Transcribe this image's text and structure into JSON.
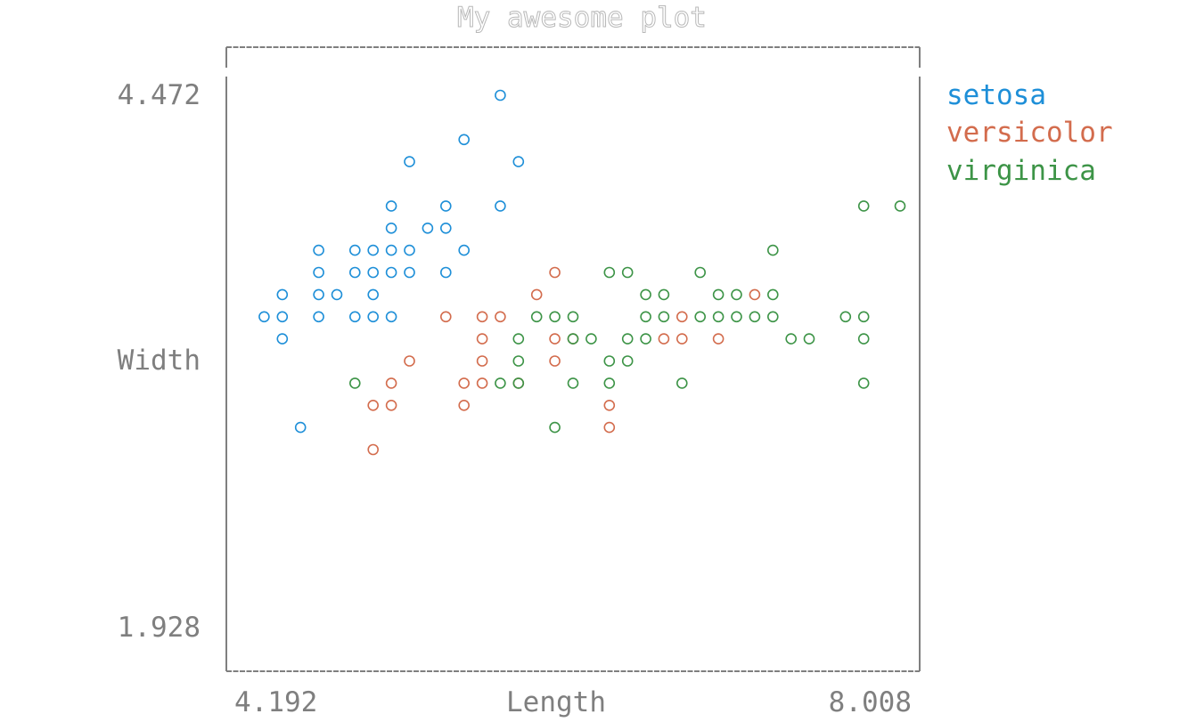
{
  "chart_data": {
    "type": "scatter",
    "title": "My awesome plot",
    "xlabel": "Length",
    "ylabel": "Width",
    "xlim": [
      4.192,
      8.008
    ],
    "ylim": [
      1.928,
      4.472
    ],
    "x_tick_labels": [
      "4.192",
      "8.008"
    ],
    "y_tick_labels": [
      "4.472",
      "1.928"
    ],
    "legend_position": "top-right",
    "grid": false,
    "series": [
      {
        "name": "setosa",
        "color": "#1e8fd8",
        "points": [
          [
            5.7,
            4.4
          ],
          [
            5.5,
            4.2
          ],
          [
            5.2,
            4.1
          ],
          [
            5.8,
            4.1
          ],
          [
            5.1,
            3.9
          ],
          [
            5.4,
            3.9
          ],
          [
            5.7,
            3.9
          ],
          [
            5.1,
            3.8
          ],
          [
            5.3,
            3.8
          ],
          [
            5.4,
            3.8
          ],
          [
            4.7,
            3.7
          ],
          [
            4.9,
            3.7
          ],
          [
            5.0,
            3.7
          ],
          [
            5.1,
            3.7
          ],
          [
            5.2,
            3.7
          ],
          [
            5.5,
            3.7
          ],
          [
            4.7,
            3.6
          ],
          [
            4.9,
            3.6
          ],
          [
            5.0,
            3.6
          ],
          [
            5.1,
            3.6
          ],
          [
            5.2,
            3.6
          ],
          [
            5.4,
            3.6
          ],
          [
            4.5,
            3.5
          ],
          [
            4.7,
            3.5
          ],
          [
            4.8,
            3.5
          ],
          [
            5.0,
            3.5
          ],
          [
            4.4,
            3.4
          ],
          [
            4.5,
            3.4
          ],
          [
            4.7,
            3.4
          ],
          [
            4.9,
            3.4
          ],
          [
            5.0,
            3.4
          ],
          [
            5.1,
            3.4
          ],
          [
            4.5,
            3.3
          ],
          [
            4.6,
            2.9
          ]
        ]
      },
      {
        "name": "versicolor",
        "color": "#d36c4d",
        "points": [
          [
            6.0,
            3.6
          ],
          [
            5.9,
            3.5
          ],
          [
            7.1,
            3.5
          ],
          [
            5.4,
            3.4
          ],
          [
            5.6,
            3.4
          ],
          [
            5.7,
            3.4
          ],
          [
            6.7,
            3.4
          ],
          [
            5.6,
            3.3
          ],
          [
            6.0,
            3.3
          ],
          [
            6.1,
            3.3
          ],
          [
            6.6,
            3.3
          ],
          [
            6.7,
            3.3
          ],
          [
            6.9,
            3.3
          ],
          [
            5.2,
            3.2
          ],
          [
            5.6,
            3.2
          ],
          [
            6.0,
            3.2
          ],
          [
            5.1,
            3.1
          ],
          [
            5.5,
            3.1
          ],
          [
            5.6,
            3.1
          ],
          [
            5.8,
            3.1
          ],
          [
            5.0,
            3.0
          ],
          [
            5.1,
            3.0
          ],
          [
            5.5,
            3.0
          ],
          [
            6.3,
            3.0
          ],
          [
            6.3,
            2.9
          ],
          [
            5.0,
            2.8
          ]
        ]
      },
      {
        "name": "virginica",
        "color": "#3d9447",
        "points": [
          [
            7.7,
            3.9
          ],
          [
            7.9,
            3.9
          ],
          [
            7.2,
            3.7
          ],
          [
            6.3,
            3.6
          ],
          [
            6.4,
            3.6
          ],
          [
            6.8,
            3.6
          ],
          [
            6.5,
            3.5
          ],
          [
            6.6,
            3.5
          ],
          [
            6.9,
            3.5
          ],
          [
            7.0,
            3.5
          ],
          [
            7.2,
            3.5
          ],
          [
            5.9,
            3.4
          ],
          [
            6.0,
            3.4
          ],
          [
            6.1,
            3.4
          ],
          [
            6.5,
            3.4
          ],
          [
            6.6,
            3.4
          ],
          [
            6.8,
            3.4
          ],
          [
            6.9,
            3.4
          ],
          [
            7.0,
            3.4
          ],
          [
            7.1,
            3.4
          ],
          [
            7.2,
            3.4
          ],
          [
            7.6,
            3.4
          ],
          [
            7.7,
            3.4
          ],
          [
            5.8,
            3.3
          ],
          [
            6.1,
            3.3
          ],
          [
            6.2,
            3.3
          ],
          [
            6.4,
            3.3
          ],
          [
            6.5,
            3.3
          ],
          [
            7.3,
            3.3
          ],
          [
            7.4,
            3.3
          ],
          [
            7.7,
            3.3
          ],
          [
            5.8,
            3.2
          ],
          [
            6.3,
            3.2
          ],
          [
            6.4,
            3.2
          ],
          [
            4.9,
            3.1
          ],
          [
            5.7,
            3.1
          ],
          [
            5.8,
            3.1
          ],
          [
            6.1,
            3.1
          ],
          [
            6.3,
            3.1
          ],
          [
            6.7,
            3.1
          ],
          [
            7.7,
            3.1
          ],
          [
            6.0,
            2.9
          ]
        ]
      }
    ]
  }
}
